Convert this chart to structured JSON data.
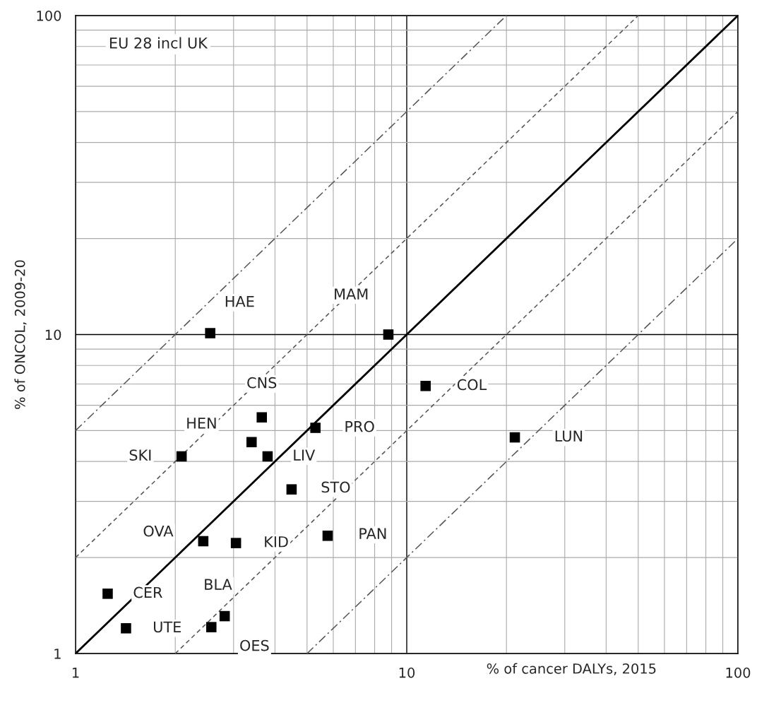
{
  "chart_data": {
    "type": "scatter",
    "xlabel": "% of cancer DALYs, 2015",
    "ylabel": "% of ONCOL, 2009-20",
    "log": "xy",
    "grid": true,
    "xlim": [
      1,
      100
    ],
    "ylim": [
      1,
      100
    ],
    "xticks": [
      1,
      {
        "value": 2,
        "label": null
      },
      {
        "value": 3,
        "label": null
      },
      {
        "value": 4,
        "label": null
      },
      {
        "value": 5,
        "label": null
      },
      {
        "value": 6,
        "label": null
      },
      {
        "value": 7,
        "label": null
      },
      {
        "value": 8,
        "label": null
      },
      {
        "value": 9,
        "label": null
      },
      10,
      {
        "value": 20,
        "label": null
      },
      {
        "value": 30,
        "label": null
      },
      {
        "value": 40,
        "label": null
      },
      {
        "value": 50,
        "label": null
      },
      {
        "value": 60,
        "label": null
      },
      {
        "value": 70,
        "label": null
      },
      {
        "value": 80,
        "label": null
      },
      {
        "value": 90,
        "label": null
      },
      100
    ],
    "yticks": [
      1,
      {
        "value": 2,
        "label": null
      },
      {
        "value": 3,
        "label": null
      },
      {
        "value": 4,
        "label": null
      },
      {
        "value": 5,
        "label": null
      },
      {
        "value": 6,
        "label": null
      },
      {
        "value": 7,
        "label": null
      },
      {
        "value": 8,
        "label": null
      },
      {
        "value": 9,
        "label": null
      },
      10,
      {
        "value": 20,
        "label": null
      },
      {
        "value": 30,
        "label": null
      },
      {
        "value": 40,
        "label": null
      },
      {
        "value": 50,
        "label": null
      },
      {
        "value": 60,
        "label": null
      },
      {
        "value": 70,
        "label": null
      },
      {
        "value": 80,
        "label": null
      },
      {
        "value": 90,
        "label": null
      },
      100
    ],
    "series": [
      {
        "color": "#000000",
        "marker": "square",
        "x": [
          2.55,
          8.8,
          11.4,
          3.65,
          5.3,
          3.4,
          3.8,
          2.09,
          21.2,
          4.49,
          2.43,
          3.05,
          5.77,
          1.25,
          1.42,
          2.82,
          2.57
        ],
        "values": [
          10.1,
          10,
          6.9,
          5.5,
          5.1,
          4.6,
          4.15,
          4.15,
          4.76,
          3.27,
          2.25,
          2.22,
          2.34,
          1.54,
          1.2,
          1.31,
          1.21
        ]
      },
      {
        "type": "line",
        "color": "#000000",
        "line_style": "solid",
        "x": [
          1,
          100
        ],
        "values": [
          1,
          100
        ]
      },
      {
        "type": "line",
        "color": "#555555",
        "line_style": "dashed",
        "x": [
          1,
          50
        ],
        "values": [
          2,
          100
        ]
      },
      {
        "type": "line",
        "color": "#555555",
        "line_style": "dashed",
        "x": [
          2,
          100
        ],
        "values": [
          1,
          50
        ]
      },
      {
        "type": "line",
        "color": "#555555",
        "line_style": "dashdot",
        "x": [
          1,
          20
        ],
        "values": [
          5,
          100
        ]
      },
      {
        "type": "line",
        "color": "#555555",
        "line_style": "dashdot",
        "x": [
          5,
          100
        ],
        "values": [
          1,
          20
        ]
      }
    ],
    "annotations": [
      "EU 28 incl UK",
      {
        "text": "HAE",
        "x": 2.55,
        "y": 10.1
      },
      {
        "text": "MAM",
        "x": 8.8,
        "y": 10
      },
      {
        "text": "COL",
        "x": 11.4,
        "y": 6.9
      },
      {
        "text": "CNS",
        "x": 3.65,
        "y": 5.5
      },
      {
        "text": "PRO",
        "x": 5.3,
        "y": 5.1
      },
      {
        "text": "HEN",
        "x": 3.4,
        "y": 4.6
      },
      {
        "text": "LIV",
        "x": 3.8,
        "y": 4.15
      },
      {
        "text": "SKI",
        "x": 2.09,
        "y": 4.15
      },
      {
        "text": "LUN",
        "x": 21.2,
        "y": 4.76
      },
      {
        "text": "STO",
        "x": 4.49,
        "y": 3.27
      },
      {
        "text": "OVA",
        "x": 2.43,
        "y": 2.25
      },
      {
        "text": "KID",
        "x": 3.05,
        "y": 2.22
      },
      {
        "text": "PAN",
        "x": 5.77,
        "y": 2.34
      },
      {
        "text": "CER",
        "x": 1.25,
        "y": 1.54
      },
      {
        "text": "UTE",
        "x": 1.42,
        "y": 1.2
      },
      {
        "text": "BLA",
        "x": 2.82,
        "y": 1.31
      },
      {
        "text": "OES",
        "x": 2.57,
        "y": 1.21
      }
    ]
  }
}
